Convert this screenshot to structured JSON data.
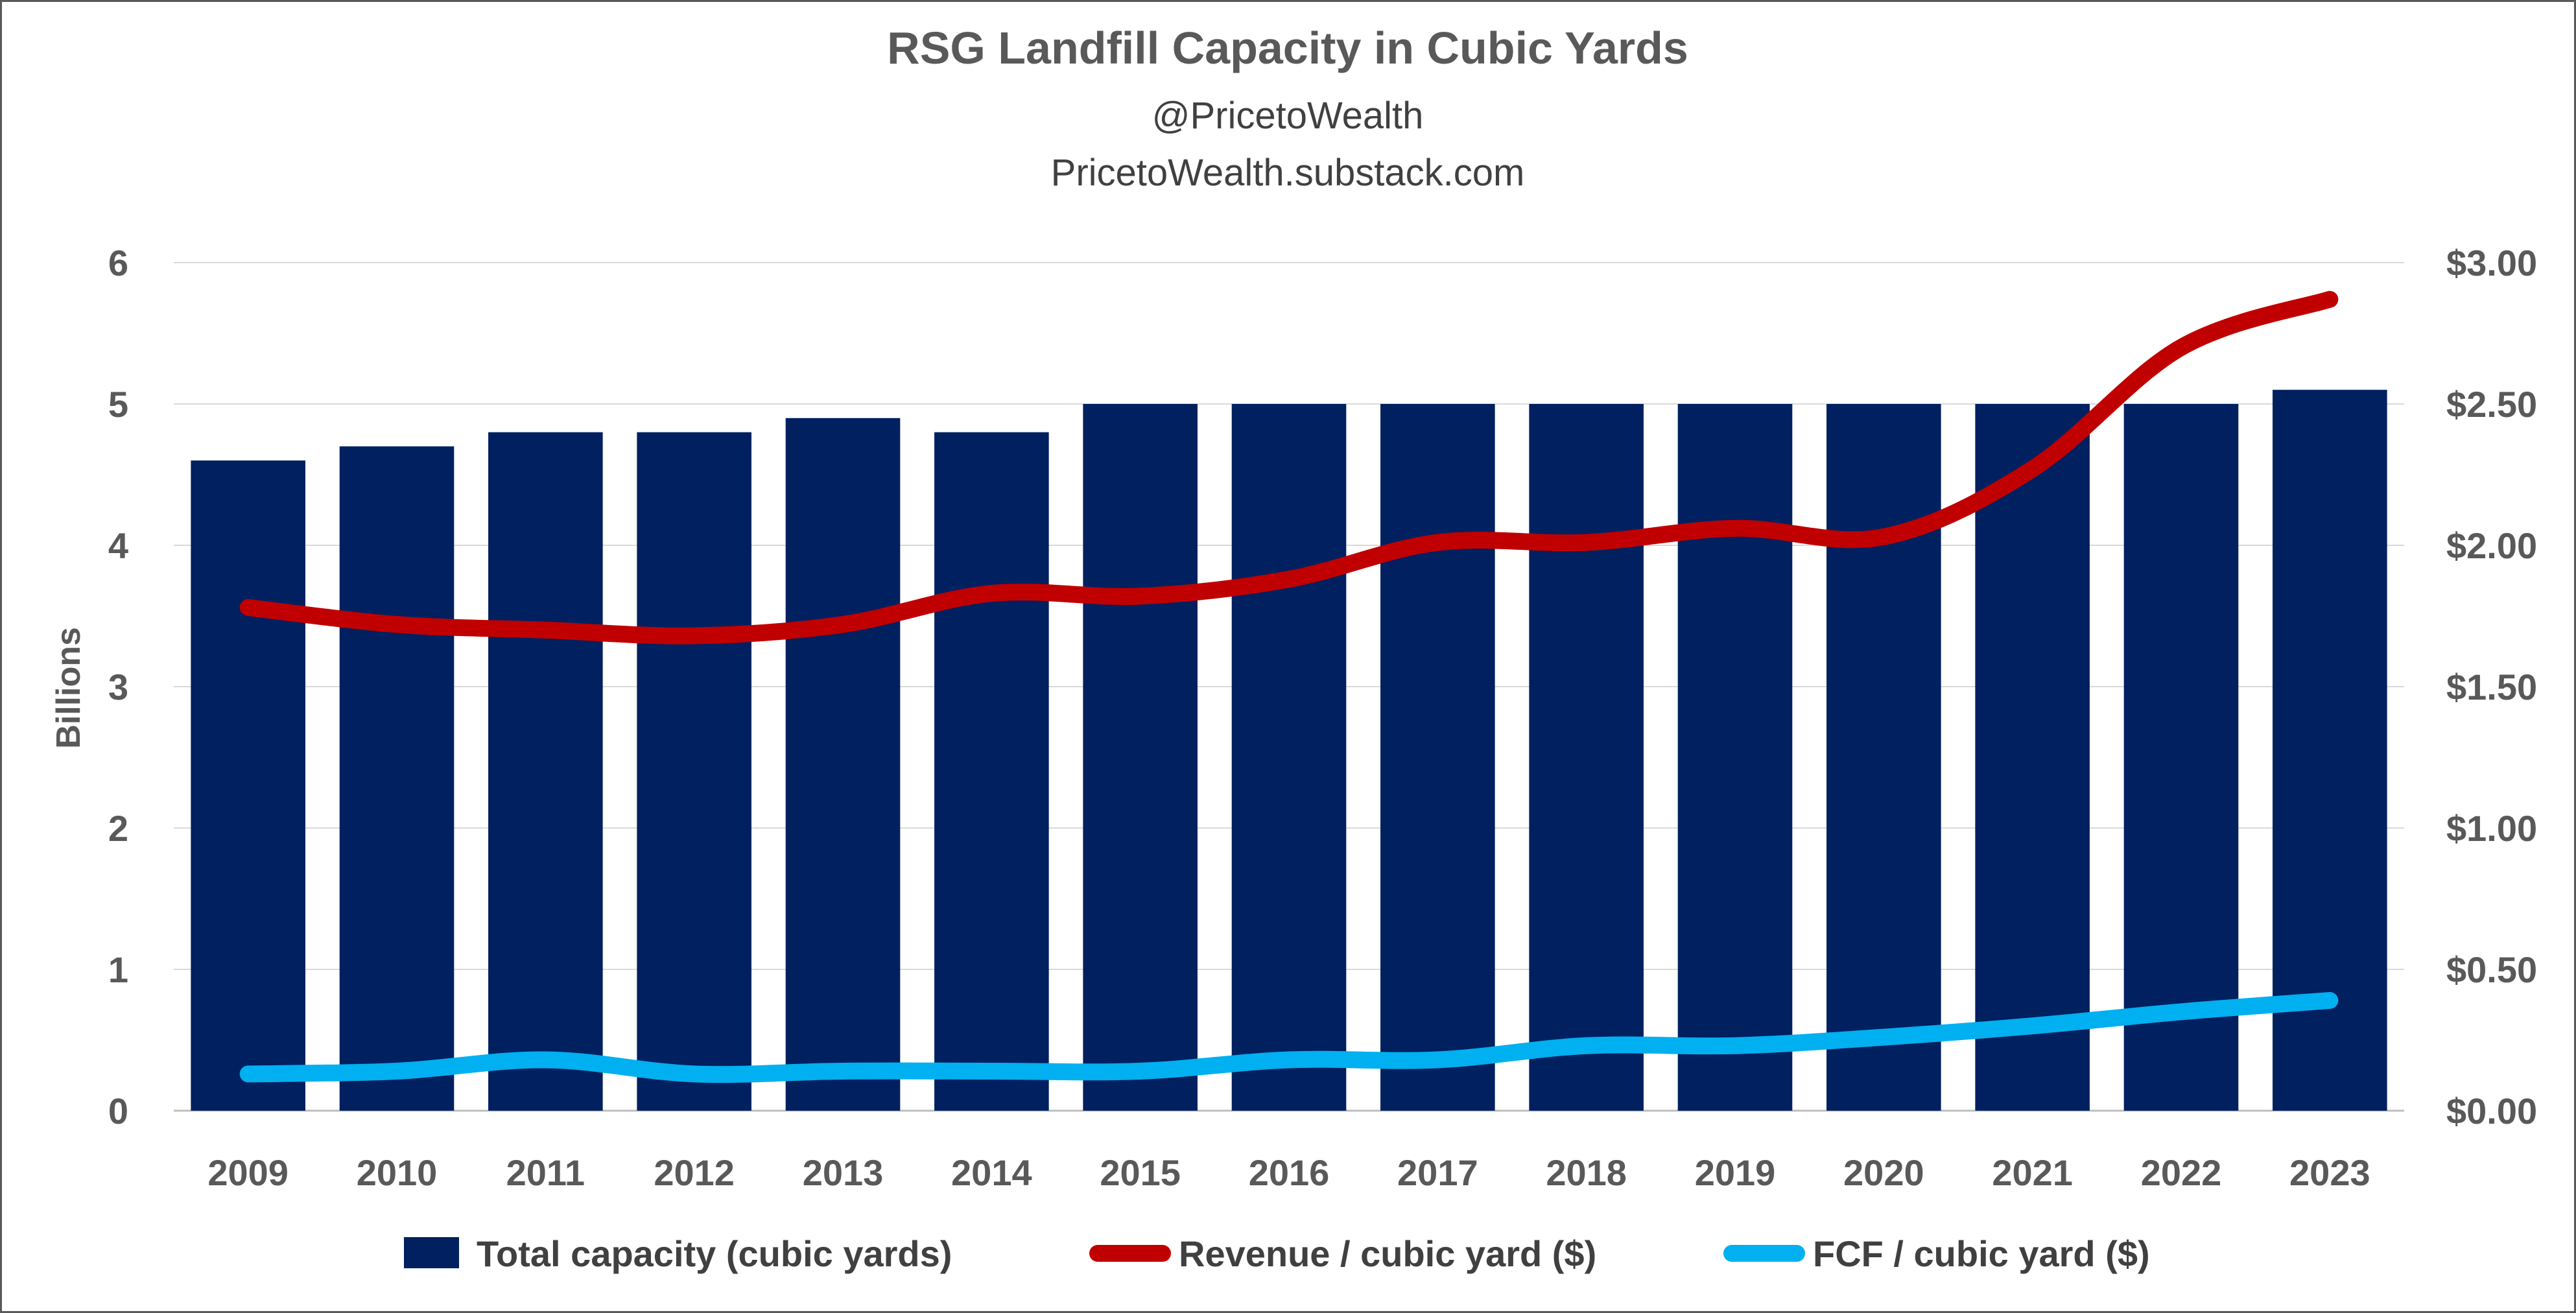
{
  "chart_data": {
    "type": "bar",
    "title": "RSG Landfill Capacity in Cubic Yards",
    "subtitles": [
      "@PricetoWealth",
      "PricetoWealth.substack.com"
    ],
    "ylabel": "Billions",
    "y2label": "",
    "categories": [
      "2009",
      "2010",
      "2011",
      "2012",
      "2013",
      "2014",
      "2015",
      "2016",
      "2017",
      "2018",
      "2019",
      "2020",
      "2021",
      "2022",
      "2023"
    ],
    "ylim": [
      0,
      6
    ],
    "y2lim": [
      0,
      3
    ],
    "y_ticks": [
      "0",
      "1",
      "2",
      "3",
      "4",
      "5",
      "6"
    ],
    "y2_ticks": [
      "$0.00",
      "$0.50",
      "$1.00",
      "$1.50",
      "$2.00",
      "$2.50",
      "$3.00"
    ],
    "grid": true,
    "legend_position": "bottom",
    "series": [
      {
        "name": "Total capacity (cubic yards)",
        "type": "bar",
        "axis": "left",
        "color": "#002060",
        "values": [
          4.6,
          4.7,
          4.8,
          4.8,
          4.9,
          4.8,
          5.0,
          5.0,
          5.0,
          5.0,
          5.0,
          5.0,
          5.0,
          5.0,
          5.1
        ]
      },
      {
        "name": "Revenue / cubic yard ($)",
        "type": "line",
        "axis": "right",
        "color": "#C00000",
        "values": [
          1.78,
          1.72,
          1.7,
          1.68,
          1.72,
          1.83,
          1.82,
          1.88,
          2.01,
          2.01,
          2.06,
          2.03,
          2.27,
          2.7,
          2.87
        ]
      },
      {
        "name": "FCF / cubic yard ($)",
        "type": "line",
        "axis": "right",
        "color": "#00B0F0",
        "values": [
          0.13,
          0.14,
          0.18,
          0.13,
          0.14,
          0.14,
          0.14,
          0.18,
          0.18,
          0.23,
          0.23,
          0.26,
          0.3,
          0.35,
          0.39
        ]
      }
    ]
  }
}
